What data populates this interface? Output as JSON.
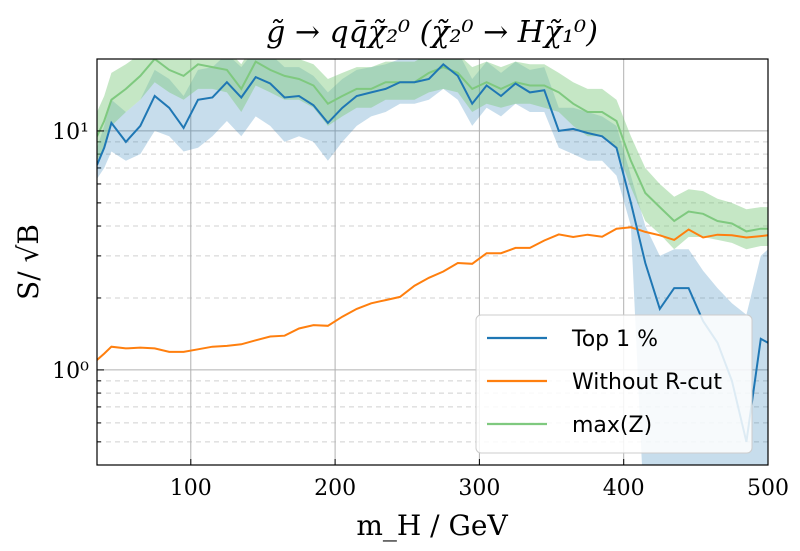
{
  "chart_data": {
    "type": "line",
    "title": "g̃ → qq̄χ̃₂⁰  (χ̃₂⁰ → Hχ̃₁⁰)",
    "xlabel": "m_H / GeV",
    "ylabel": "S/ √B",
    "xlim": [
      35,
      500
    ],
    "ylim": [
      0.4,
      20
    ],
    "yscale": "log",
    "grid": true,
    "legend_position": "bottom-right",
    "x_ticks": [
      100,
      200,
      300,
      400,
      500
    ],
    "x_tick_labels": [
      "100",
      "200",
      "300",
      "400",
      "500"
    ],
    "y_ticks": [
      1,
      10
    ],
    "y_tick_labels": [
      "10⁰",
      "10¹"
    ],
    "colors": {
      "top1": "#1f77b4",
      "top1_band": "#a9c8e3",
      "without_rcut": "#ff7f0e",
      "maxz": "#7fc97f",
      "maxz_band": "#b7e3b2",
      "overlap": "#5b9e7b"
    },
    "x": [
      35,
      40,
      45,
      55,
      65,
      75,
      85,
      95,
      105,
      115,
      125,
      135,
      145,
      155,
      165,
      175,
      185,
      195,
      205,
      215,
      225,
      235,
      245,
      255,
      265,
      275,
      285,
      295,
      305,
      315,
      325,
      335,
      345,
      355,
      365,
      375,
      385,
      395,
      405,
      415,
      425,
      435,
      445,
      455,
      465,
      475,
      485,
      495,
      500
    ],
    "series": [
      {
        "name": "Top 1 %",
        "key": "top1",
        "values": [
          7.2,
          8.5,
          10.8,
          9.0,
          10.5,
          14.0,
          12.5,
          10.3,
          13.5,
          13.8,
          16.0,
          13.8,
          16.8,
          15.8,
          13.8,
          14.0,
          12.8,
          10.8,
          12.5,
          14.0,
          14.5,
          15.0,
          16.0,
          16.0,
          16.5,
          19.0,
          17.0,
          13.0,
          15.5,
          14.0,
          15.8,
          14.5,
          14.8,
          10.0,
          10.2,
          9.8,
          9.5,
          8.5,
          5.0,
          2.8,
          1.8,
          2.2,
          2.2,
          1.6,
          1.3,
          0.9,
          0.5,
          1.35,
          1.3
        ],
        "lower": [
          6.3,
          7.0,
          8.2,
          7.5,
          8.0,
          10.0,
          9.5,
          8.2,
          8.5,
          9.5,
          11.0,
          9.5,
          11.5,
          10.5,
          9.0,
          9.5,
          9.0,
          7.5,
          9.0,
          10.5,
          11.5,
          12.0,
          13.0,
          13.0,
          13.5,
          15.0,
          13.5,
          10.5,
          12.5,
          11.5,
          13.0,
          12.0,
          12.0,
          8.5,
          8.0,
          7.5,
          7.5,
          6.5,
          4.0,
          0.2,
          0.2,
          0.2,
          0.2,
          0.2,
          0.2,
          0.2,
          0.2,
          0.2,
          0.2
        ],
        "upper": [
          8.5,
          10.5,
          13.5,
          12.0,
          13.5,
          18.0,
          16.5,
          14.0,
          18.0,
          18.5,
          21,
          18.5,
          22,
          21,
          18.5,
          18.5,
          17.0,
          14.5,
          16.5,
          18.0,
          18.5,
          19.0,
          20,
          20,
          20.5,
          24,
          21.5,
          16.5,
          19.5,
          17.5,
          19.5,
          18.0,
          18.5,
          12.5,
          12.5,
          12.0,
          11.5,
          10.5,
          6.5,
          4.0,
          3.0,
          3.2,
          3.2,
          2.6,
          2.2,
          1.9,
          1.7,
          3.0,
          3.2
        ]
      },
      {
        "name": "Without R-cut",
        "key": "without_rcut",
        "values": [
          1.1,
          1.17,
          1.25,
          1.23,
          1.24,
          1.23,
          1.19,
          1.19,
          1.22,
          1.25,
          1.26,
          1.28,
          1.33,
          1.38,
          1.39,
          1.49,
          1.54,
          1.53,
          1.67,
          1.8,
          1.9,
          1.96,
          2.02,
          2.25,
          2.43,
          2.58,
          2.8,
          2.78,
          3.08,
          3.08,
          3.24,
          3.24,
          3.48,
          3.69,
          3.6,
          3.68,
          3.61,
          3.9,
          3.95,
          3.78,
          3.66,
          3.5,
          3.87,
          3.58,
          3.68,
          3.66,
          3.58,
          3.63,
          3.66
        ]
      },
      {
        "name": "max(Z)",
        "key": "maxz",
        "values": [
          9.5,
          11.0,
          13.5,
          15.0,
          17.0,
          20,
          18.0,
          17.0,
          19.0,
          18.5,
          18.0,
          15.0,
          19.5,
          18.0,
          17.0,
          16.5,
          15.5,
          13.0,
          14.0,
          15.0,
          15.0,
          16.0,
          16.0,
          16.0,
          17.5,
          18.5,
          17.5,
          15.0,
          16.0,
          15.0,
          16.0,
          15.5,
          15.5,
          14.5,
          13.0,
          12.0,
          12.0,
          11.0,
          7.5,
          5.5,
          4.8,
          4.2,
          4.6,
          4.5,
          4.2,
          4.1,
          3.8,
          3.9,
          3.9
        ],
        "lower": [
          7.5,
          8.5,
          10.5,
          12.0,
          13.5,
          16.0,
          14.5,
          13.5,
          15.0,
          15.0,
          14.5,
          12.0,
          15.5,
          14.5,
          13.5,
          13.5,
          12.5,
          10.5,
          11.5,
          12.5,
          12.5,
          13.5,
          13.5,
          13.5,
          14.5,
          15.0,
          14.5,
          12.0,
          13.0,
          12.5,
          13.0,
          13.0,
          12.5,
          12.0,
          10.5,
          9.5,
          9.5,
          8.5,
          5.8,
          4.2,
          3.7,
          3.2,
          3.6,
          3.6,
          3.5,
          3.4,
          3.2,
          3.3,
          3.3
        ],
        "upper": [
          12.0,
          14.0,
          17.5,
          19.0,
          21,
          24,
          22,
          21,
          23,
          22,
          22,
          19.0,
          24,
          22,
          21,
          20,
          19.0,
          16.5,
          17.5,
          18.5,
          18.5,
          19.5,
          19.5,
          19.5,
          21,
          22.5,
          21,
          18.5,
          19.5,
          18.5,
          19.5,
          19.0,
          19.0,
          17.5,
          16.0,
          15.0,
          15.0,
          13.5,
          9.5,
          7.0,
          6.0,
          5.3,
          5.7,
          5.6,
          5.2,
          5.0,
          4.7,
          4.8,
          4.8
        ]
      }
    ],
    "legend": [
      "Top 1 %",
      "Without R-cut",
      "max(Z)"
    ]
  }
}
